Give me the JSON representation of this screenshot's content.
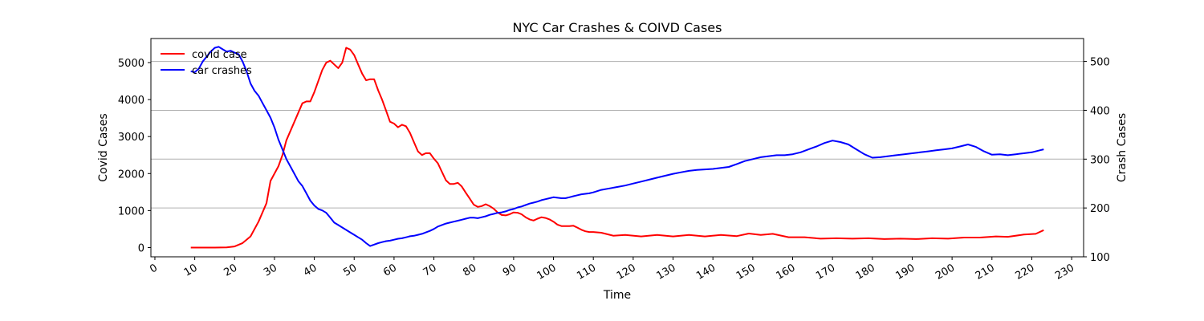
{
  "chart_data": {
    "type": "line",
    "title": "NYC Car Crashes & COIVD Cases",
    "xlabel": "Time",
    "ylabel_left": "Covid Cases",
    "ylabel_right": "Crash Cases",
    "xlim": [
      -1,
      233
    ],
    "ylim_left": [
      -250,
      5650
    ],
    "ylim_right": [
      100,
      547
    ],
    "x_ticks": [
      0,
      10,
      20,
      30,
      40,
      50,
      60,
      70,
      80,
      90,
      100,
      110,
      120,
      130,
      140,
      150,
      160,
      170,
      180,
      190,
      200,
      210,
      220,
      230
    ],
    "y_ticks_left": [
      0,
      1000,
      2000,
      3000,
      4000,
      5000
    ],
    "y_ticks_right": [
      100,
      200,
      300,
      400,
      500
    ],
    "grid": "horizontal lines at right-axis ticks",
    "legend_position": "top-left",
    "series": [
      {
        "name": "covid case",
        "axis": "left",
        "color": "#ff0000",
        "points": [
          [
            9,
            0
          ],
          [
            12,
            0
          ],
          [
            15,
            0
          ],
          [
            18,
            5
          ],
          [
            20,
            30
          ],
          [
            22,
            120
          ],
          [
            24,
            300
          ],
          [
            26,
            700
          ],
          [
            28,
            1200
          ],
          [
            29,
            1800
          ],
          [
            31,
            2200
          ],
          [
            32,
            2500
          ],
          [
            33,
            2900
          ],
          [
            35,
            3400
          ],
          [
            37,
            3900
          ],
          [
            38,
            3950
          ],
          [
            39,
            3950
          ],
          [
            40,
            4200
          ],
          [
            42,
            4800
          ],
          [
            43,
            5000
          ],
          [
            44,
            5050
          ],
          [
            45,
            4950
          ],
          [
            46,
            4850
          ],
          [
            47,
            5000
          ],
          [
            48,
            5400
          ],
          [
            49,
            5350
          ],
          [
            50,
            5200
          ],
          [
            51,
            4950
          ],
          [
            52,
            4700
          ],
          [
            53,
            4520
          ],
          [
            54,
            4550
          ],
          [
            55,
            4550
          ],
          [
            56,
            4250
          ],
          [
            57,
            4000
          ],
          [
            58,
            3700
          ],
          [
            59,
            3400
          ],
          [
            60,
            3350
          ],
          [
            61,
            3250
          ],
          [
            62,
            3320
          ],
          [
            63,
            3280
          ],
          [
            64,
            3100
          ],
          [
            65,
            2850
          ],
          [
            66,
            2600
          ],
          [
            67,
            2500
          ],
          [
            68,
            2550
          ],
          [
            69,
            2550
          ],
          [
            70,
            2400
          ],
          [
            71,
            2280
          ],
          [
            72,
            2050
          ],
          [
            73,
            1820
          ],
          [
            74,
            1720
          ],
          [
            75,
            1720
          ],
          [
            76,
            1750
          ],
          [
            77,
            1650
          ],
          [
            78,
            1480
          ],
          [
            79,
            1320
          ],
          [
            80,
            1160
          ],
          [
            81,
            1100
          ],
          [
            82,
            1120
          ],
          [
            83,
            1170
          ],
          [
            84,
            1120
          ],
          [
            85,
            1050
          ],
          [
            86,
            950
          ],
          [
            87,
            880
          ],
          [
            88,
            870
          ],
          [
            89,
            900
          ],
          [
            90,
            950
          ],
          [
            91,
            940
          ],
          [
            92,
            900
          ],
          [
            93,
            820
          ],
          [
            94,
            760
          ],
          [
            95,
            730
          ],
          [
            96,
            780
          ],
          [
            97,
            820
          ],
          [
            98,
            800
          ],
          [
            99,
            760
          ],
          [
            100,
            700
          ],
          [
            101,
            620
          ],
          [
            102,
            580
          ],
          [
            103,
            580
          ],
          [
            104,
            580
          ],
          [
            105,
            590
          ],
          [
            106,
            540
          ],
          [
            107,
            480
          ],
          [
            108,
            440
          ],
          [
            109,
            420
          ],
          [
            110,
            420
          ],
          [
            112,
            400
          ],
          [
            115,
            320
          ],
          [
            118,
            340
          ],
          [
            122,
            300
          ],
          [
            126,
            340
          ],
          [
            130,
            300
          ],
          [
            134,
            340
          ],
          [
            138,
            300
          ],
          [
            142,
            340
          ],
          [
            146,
            310
          ],
          [
            149,
            380
          ],
          [
            152,
            340
          ],
          [
            155,
            370
          ],
          [
            159,
            280
          ],
          [
            163,
            280
          ],
          [
            167,
            240
          ],
          [
            171,
            250
          ],
          [
            175,
            240
          ],
          [
            179,
            250
          ],
          [
            183,
            230
          ],
          [
            187,
            240
          ],
          [
            191,
            230
          ],
          [
            195,
            250
          ],
          [
            199,
            240
          ],
          [
            203,
            270
          ],
          [
            207,
            270
          ],
          [
            211,
            300
          ],
          [
            214,
            290
          ],
          [
            218,
            350
          ],
          [
            221,
            370
          ],
          [
            223,
            470
          ]
        ]
      },
      {
        "name": "car crashes",
        "axis": "right",
        "color": "#0000ff",
        "points": [
          [
            9,
            480
          ],
          [
            10,
            478
          ],
          [
            11,
            485
          ],
          [
            12,
            500
          ],
          [
            13,
            510
          ],
          [
            14,
            520
          ],
          [
            15,
            528
          ],
          [
            16,
            530
          ],
          [
            17,
            525
          ],
          [
            18,
            520
          ],
          [
            19,
            522
          ],
          [
            20,
            518
          ],
          [
            21,
            515
          ],
          [
            22,
            500
          ],
          [
            23,
            480
          ],
          [
            24,
            455
          ],
          [
            25,
            440
          ],
          [
            26,
            430
          ],
          [
            27,
            415
          ],
          [
            28,
            400
          ],
          [
            29,
            385
          ],
          [
            30,
            365
          ],
          [
            31,
            340
          ],
          [
            32,
            320
          ],
          [
            33,
            300
          ],
          [
            34,
            285
          ],
          [
            35,
            270
          ],
          [
            36,
            255
          ],
          [
            37,
            245
          ],
          [
            38,
            230
          ],
          [
            39,
            215
          ],
          [
            40,
            205
          ],
          [
            41,
            198
          ],
          [
            42,
            195
          ],
          [
            43,
            190
          ],
          [
            44,
            180
          ],
          [
            45,
            170
          ],
          [
            46,
            165
          ],
          [
            47,
            160
          ],
          [
            48,
            155
          ],
          [
            49,
            150
          ],
          [
            50,
            145
          ],
          [
            51,
            140
          ],
          [
            52,
            135
          ],
          [
            53,
            128
          ],
          [
            54,
            122
          ],
          [
            55,
            125
          ],
          [
            56,
            128
          ],
          [
            57,
            130
          ],
          [
            58,
            132
          ],
          [
            59,
            133
          ],
          [
            60,
            135
          ],
          [
            61,
            137
          ],
          [
            62,
            138
          ],
          [
            63,
            140
          ],
          [
            64,
            142
          ],
          [
            65,
            143
          ],
          [
            66,
            145
          ],
          [
            67,
            147
          ],
          [
            68,
            150
          ],
          [
            69,
            153
          ],
          [
            70,
            157
          ],
          [
            71,
            162
          ],
          [
            72,
            165
          ],
          [
            73,
            168
          ],
          [
            74,
            170
          ],
          [
            75,
            172
          ],
          [
            76,
            174
          ],
          [
            77,
            176
          ],
          [
            78,
            178
          ],
          [
            79,
            180
          ],
          [
            80,
            180
          ],
          [
            81,
            179
          ],
          [
            82,
            181
          ],
          [
            83,
            183
          ],
          [
            84,
            186
          ],
          [
            85,
            188
          ],
          [
            86,
            190
          ],
          [
            87,
            191
          ],
          [
            88,
            193
          ],
          [
            89,
            196
          ],
          [
            90,
            198
          ],
          [
            91,
            201
          ],
          [
            92,
            203
          ],
          [
            93,
            206
          ],
          [
            94,
            209
          ],
          [
            95,
            211
          ],
          [
            96,
            213
          ],
          [
            97,
            216
          ],
          [
            98,
            218
          ],
          [
            99,
            220
          ],
          [
            100,
            222
          ],
          [
            101,
            221
          ],
          [
            102,
            220
          ],
          [
            103,
            220
          ],
          [
            104,
            222
          ],
          [
            105,
            224
          ],
          [
            106,
            226
          ],
          [
            107,
            228
          ],
          [
            108,
            229
          ],
          [
            109,
            230
          ],
          [
            110,
            232
          ],
          [
            112,
            237
          ],
          [
            114,
            240
          ],
          [
            116,
            243
          ],
          [
            118,
            246
          ],
          [
            120,
            250
          ],
          [
            122,
            254
          ],
          [
            124,
            258
          ],
          [
            126,
            262
          ],
          [
            128,
            266
          ],
          [
            130,
            270
          ],
          [
            132,
            273
          ],
          [
            134,
            276
          ],
          [
            136,
            278
          ],
          [
            138,
            279
          ],
          [
            140,
            280
          ],
          [
            142,
            282
          ],
          [
            144,
            284
          ],
          [
            146,
            290
          ],
          [
            148,
            296
          ],
          [
            150,
            300
          ],
          [
            152,
            304
          ],
          [
            154,
            306
          ],
          [
            156,
            308
          ],
          [
            158,
            308
          ],
          [
            160,
            310
          ],
          [
            162,
            314
          ],
          [
            164,
            320
          ],
          [
            166,
            326
          ],
          [
            168,
            333
          ],
          [
            170,
            338
          ],
          [
            172,
            335
          ],
          [
            174,
            330
          ],
          [
            176,
            320
          ],
          [
            178,
            310
          ],
          [
            180,
            303
          ],
          [
            182,
            304
          ],
          [
            184,
            306
          ],
          [
            186,
            308
          ],
          [
            188,
            310
          ],
          [
            190,
            312
          ],
          [
            192,
            314
          ],
          [
            194,
            316
          ],
          [
            196,
            318
          ],
          [
            198,
            320
          ],
          [
            200,
            322
          ],
          [
            202,
            326
          ],
          [
            204,
            330
          ],
          [
            206,
            325
          ],
          [
            208,
            316
          ],
          [
            210,
            309
          ],
          [
            212,
            310
          ],
          [
            214,
            308
          ],
          [
            216,
            310
          ],
          [
            218,
            312
          ],
          [
            220,
            314
          ],
          [
            222,
            318
          ],
          [
            223,
            320
          ]
        ]
      }
    ]
  }
}
